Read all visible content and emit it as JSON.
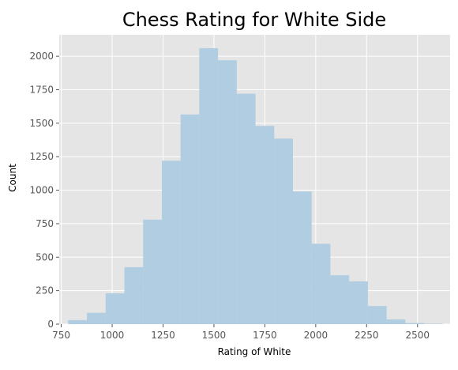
{
  "chart_data": {
    "type": "bar",
    "subtype": "histogram",
    "title": "Chess Rating for White Side",
    "xlabel": "Rating of White",
    "ylabel": "Count",
    "xlim": [
      740,
      2660
    ],
    "ylim": [
      0,
      2160
    ],
    "xticks": [
      750,
      1000,
      1250,
      1500,
      1750,
      2000,
      2250,
      2500
    ],
    "yticks": [
      0,
      250,
      500,
      750,
      1000,
      1250,
      1500,
      1750,
      2000
    ],
    "grid": true,
    "bins": [
      {
        "x0": 784,
        "x1": 876,
        "count": 30
      },
      {
        "x0": 876,
        "x1": 968,
        "count": 85
      },
      {
        "x0": 968,
        "x1": 1060,
        "count": 230
      },
      {
        "x0": 1060,
        "x1": 1152,
        "count": 425
      },
      {
        "x0": 1152,
        "x1": 1244,
        "count": 780
      },
      {
        "x0": 1244,
        "x1": 1336,
        "count": 1220
      },
      {
        "x0": 1336,
        "x1": 1428,
        "count": 1565
      },
      {
        "x0": 1428,
        "x1": 1520,
        "count": 2060
      },
      {
        "x0": 1520,
        "x1": 1612,
        "count": 1970
      },
      {
        "x0": 1612,
        "x1": 1704,
        "count": 1720
      },
      {
        "x0": 1704,
        "x1": 1796,
        "count": 1480
      },
      {
        "x0": 1796,
        "x1": 1888,
        "count": 1385
      },
      {
        "x0": 1888,
        "x1": 1980,
        "count": 990
      },
      {
        "x0": 1980,
        "x1": 2072,
        "count": 600
      },
      {
        "x0": 2072,
        "x1": 2164,
        "count": 365
      },
      {
        "x0": 2164,
        "x1": 2256,
        "count": 320
      },
      {
        "x0": 2256,
        "x1": 2348,
        "count": 135
      },
      {
        "x0": 2348,
        "x1": 2440,
        "count": 35
      },
      {
        "x0": 2440,
        "x1": 2532,
        "count": 8
      },
      {
        "x0": 2532,
        "x1": 2624,
        "count": 3
      }
    ],
    "colors": {
      "bar": "#b0cde1",
      "plot_background": "#e5e5e5",
      "grid": "#ffffff"
    }
  }
}
